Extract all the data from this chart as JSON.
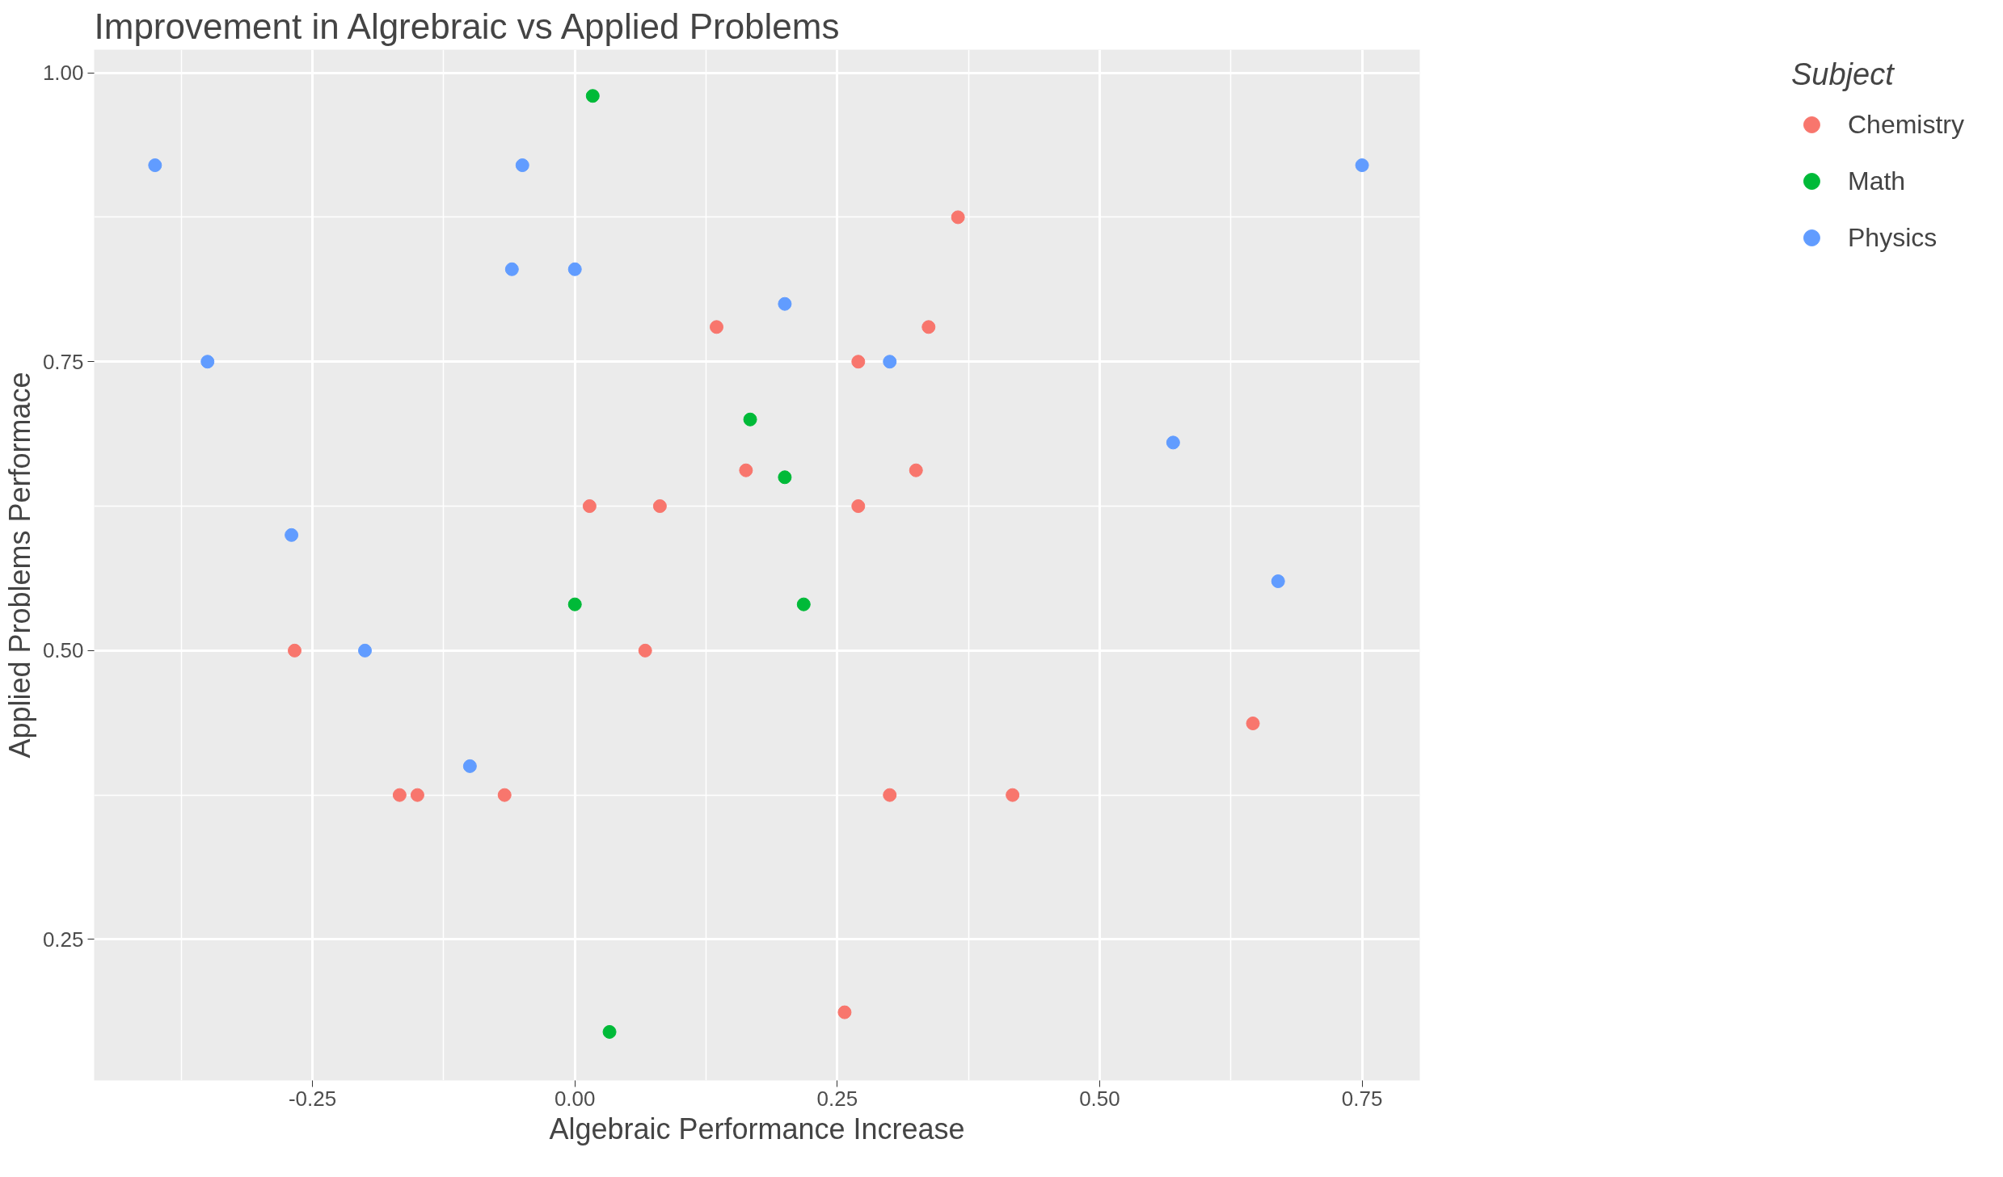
{
  "chart_data": {
    "type": "scatter",
    "title": "Improvement in Algrebraic vs Applied Problems",
    "xlabel": "Algebraic Performance Increase",
    "ylabel": "Applied Problems Performace",
    "legend_title": "Subject",
    "series": [
      {
        "name": "Chemistry",
        "color": "#f8766d",
        "x": [
          -0.267,
          -0.167,
          -0.15,
          -0.067,
          0.014,
          0.067,
          0.081,
          0.135,
          0.163,
          0.27,
          0.27,
          0.257,
          0.3,
          0.325,
          0.337,
          0.365,
          0.417,
          0.646
        ],
        "values": [
          0.5,
          0.375,
          0.375,
          0.375,
          0.625,
          0.5,
          0.625,
          0.78,
          0.656,
          0.75,
          0.625,
          0.187,
          0.375,
          0.656,
          0.78,
          0.875,
          0.375,
          0.437
        ]
      },
      {
        "name": "Math",
        "color": "#00ba38",
        "x": [
          0.017,
          0.167,
          0.2,
          0.0,
          0.218,
          0.033
        ],
        "values": [
          0.98,
          0.7,
          0.65,
          0.54,
          0.54,
          0.17
        ]
      },
      {
        "name": "Physics",
        "color": "#619cff",
        "x": [
          -0.4,
          -0.35,
          -0.27,
          -0.2,
          -0.1,
          -0.06,
          -0.05,
          0.0,
          0.2,
          0.3,
          0.57,
          0.67,
          0.75
        ],
        "values": [
          0.92,
          0.75,
          0.6,
          0.5,
          0.4,
          0.83,
          0.92,
          0.83,
          0.8,
          0.75,
          0.68,
          0.56,
          0.92
        ]
      }
    ],
    "xlim": [
      -0.458,
      0.805
    ],
    "ylim": [
      0.128,
      1.02
    ],
    "xticks": [
      {
        "value": -0.25,
        "label": "-0.25"
      },
      {
        "value": 0,
        "label": "0.00"
      },
      {
        "value": 0.25,
        "label": "0.25"
      },
      {
        "value": 0.5,
        "label": "0.50"
      },
      {
        "value": 0.75,
        "label": "0.75"
      }
    ],
    "yticks": [
      {
        "value": 0.25,
        "label": "0.25"
      },
      {
        "value": 0.5,
        "label": "0.50"
      },
      {
        "value": 0.75,
        "label": "0.75"
      },
      {
        "value": 1.0,
        "label": "1.00"
      }
    ],
    "grid": true,
    "legend": "right",
    "marker": "circle"
  }
}
